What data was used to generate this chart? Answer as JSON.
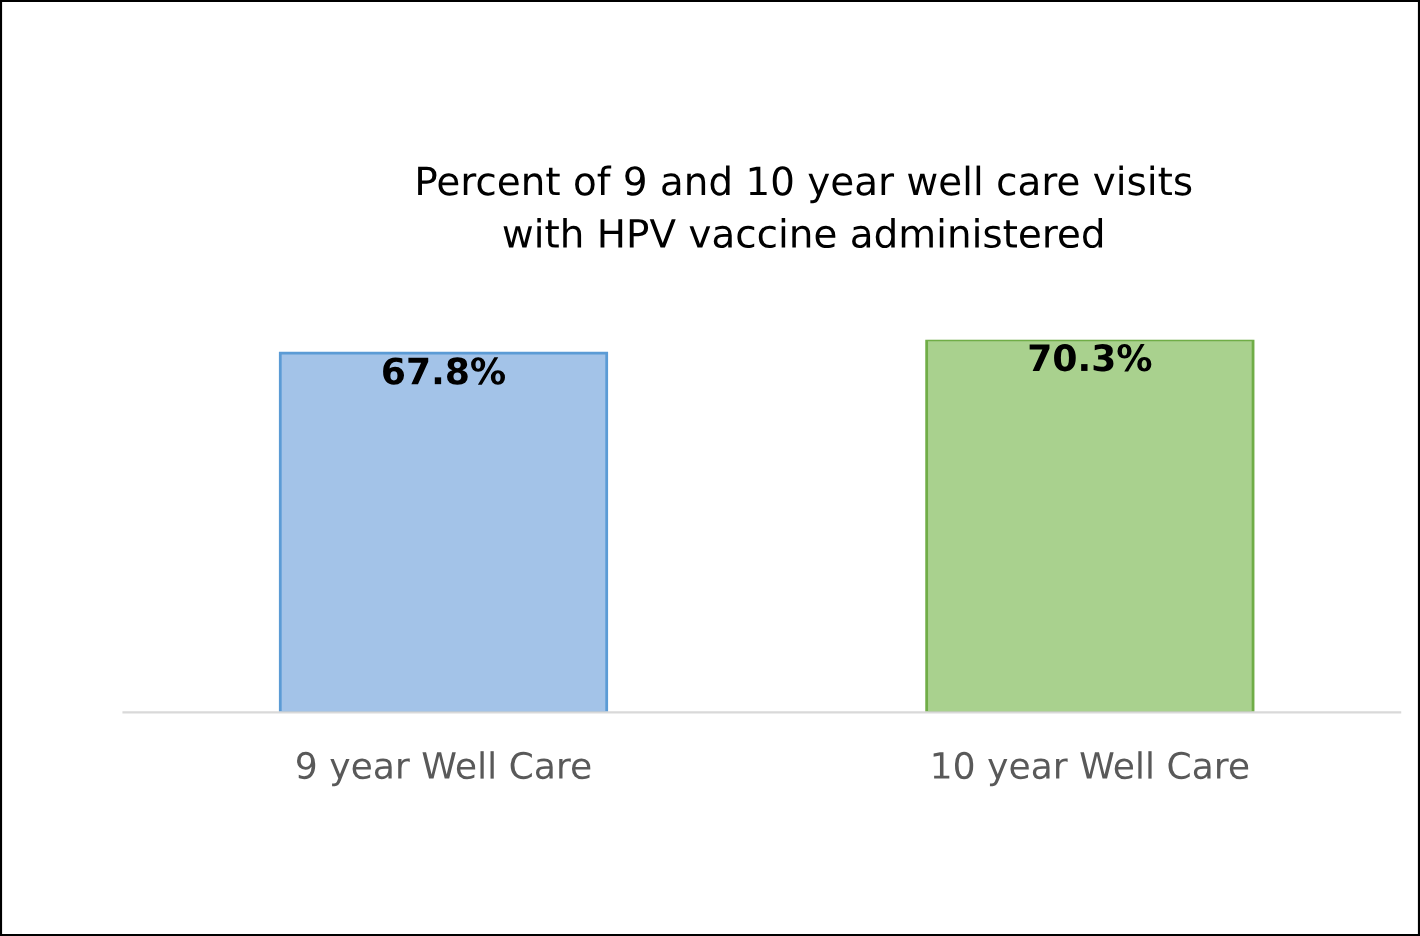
{
  "chart_data": {
    "type": "bar",
    "title": "Percent of 9 and 10 year well care visits\nwith HPV vaccine administered",
    "categories": [
      "9 year Well Care",
      "10 year Well Care"
    ],
    "values": [
      67.8,
      70.3
    ],
    "value_labels": [
      "67.8%",
      "70.3%"
    ],
    "colors": [
      "#a3c3e8",
      "#a9d18e"
    ],
    "tick_labels": "x",
    "grid": false,
    "legend": false
  }
}
